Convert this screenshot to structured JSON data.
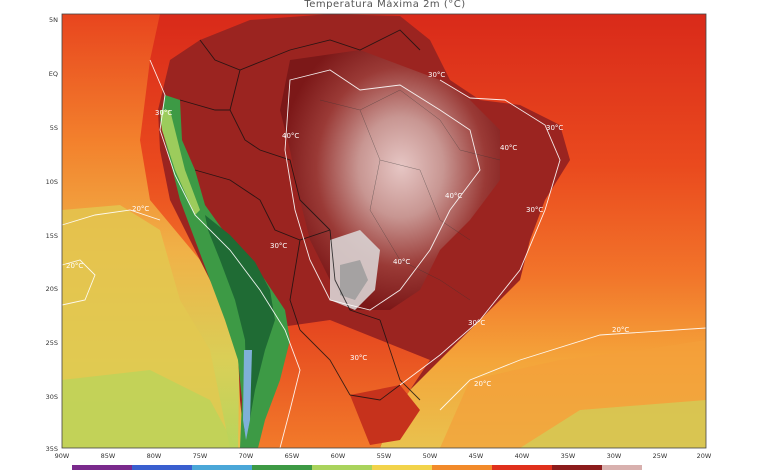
{
  "title": "Temperatura Máxima 2m (°C)",
  "axes": {
    "lat_ticks": [
      "5N",
      "EQ",
      "5S",
      "10S",
      "15S",
      "20S",
      "25S",
      "30S",
      "35S"
    ],
    "lon_ticks": [
      "90W",
      "85W",
      "80W",
      "75W",
      "70W",
      "65W",
      "60W",
      "55W",
      "50W",
      "45W",
      "40W",
      "35W",
      "30W",
      "25W",
      "20W"
    ]
  },
  "isotherm_labels": [
    {
      "text": "30°C"
    },
    {
      "text": "30°C"
    },
    {
      "text": "30°C"
    },
    {
      "text": "30°C"
    },
    {
      "text": "20°C"
    },
    {
      "text": "20°C"
    },
    {
      "text": "20°C"
    },
    {
      "text": "20°C"
    },
    {
      "text": "40°C"
    },
    {
      "text": "40°C"
    },
    {
      "text": "40°C"
    },
    {
      "text": "40°C"
    },
    {
      "text": "30°C"
    },
    {
      "text": "30°C"
    },
    {
      "text": "30°C"
    }
  ],
  "colors": {
    "ocean_hot": "#e8361c",
    "ocean_warm": "#f26a1f",
    "ocean_mild": "#f6a535",
    "ocean_cool": "#dccf52",
    "ocean_cold": "#a9d35c",
    "land_very_hot": "#8c1c1c",
    "land_hottest": "#d8b0ae",
    "andes_green": "#2e8b3a",
    "isotherm": "#ffffff"
  }
}
